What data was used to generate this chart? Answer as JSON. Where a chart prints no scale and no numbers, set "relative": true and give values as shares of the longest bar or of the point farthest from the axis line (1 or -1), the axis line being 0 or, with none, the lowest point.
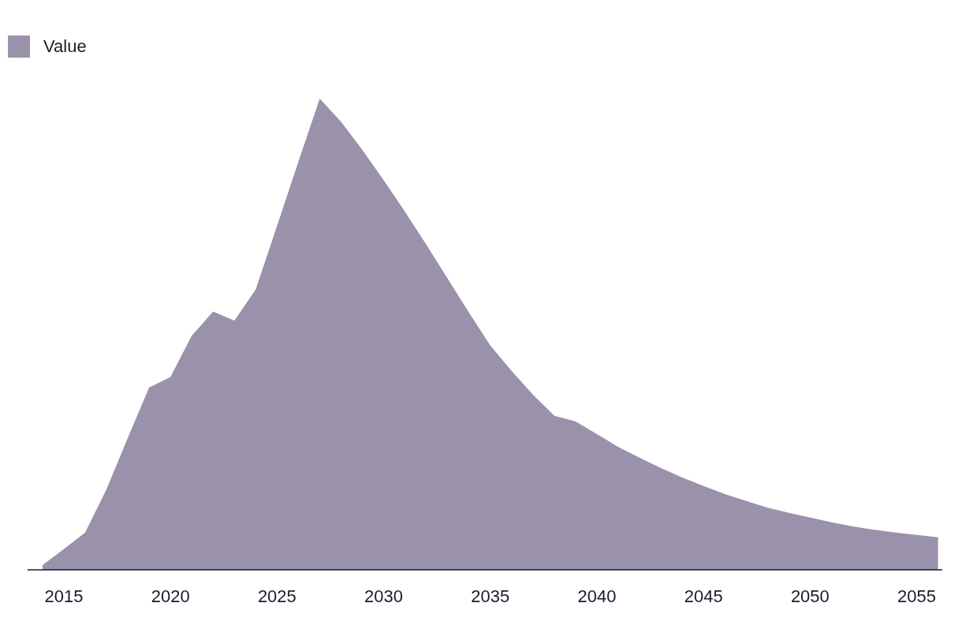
{
  "chart_data": {
    "type": "area",
    "relative": true,
    "legend": "top left",
    "x": [
      2014,
      2015,
      2016,
      2017,
      2018,
      2019,
      2020,
      2021,
      2022,
      2023,
      2024,
      2025,
      2026,
      2027,
      2028,
      2029,
      2030,
      2031,
      2032,
      2033,
      2034,
      2035,
      2036,
      2037,
      2038,
      2039,
      2040,
      2041,
      2042,
      2043,
      2044,
      2045,
      2046,
      2047,
      2048,
      2049,
      2050,
      2051,
      2052,
      2053,
      2054,
      2055,
      2056
    ],
    "series": [
      {
        "name": "Value",
        "color": "#9a91aa",
        "values": [
          0.01,
          0.044,
          0.079,
          0.171,
          0.28,
          0.387,
          0.409,
          0.497,
          0.548,
          0.529,
          0.595,
          0.73,
          0.866,
          1,
          0.951,
          0.891,
          0.827,
          0.76,
          0.69,
          0.618,
          0.546,
          0.476,
          0.422,
          0.372,
          0.327,
          0.315,
          0.288,
          0.261,
          0.238,
          0.216,
          0.196,
          0.178,
          0.161,
          0.146,
          0.132,
          0.121,
          0.111,
          0.101,
          0.092,
          0.085,
          0.079,
          0.074,
          0.069
        ]
      }
    ],
    "xlim": [
      2013.3,
      2056.2
    ],
    "xticks": [
      2015,
      2020,
      2025,
      2030,
      2035,
      2040,
      2045,
      2050,
      2055
    ]
  }
}
